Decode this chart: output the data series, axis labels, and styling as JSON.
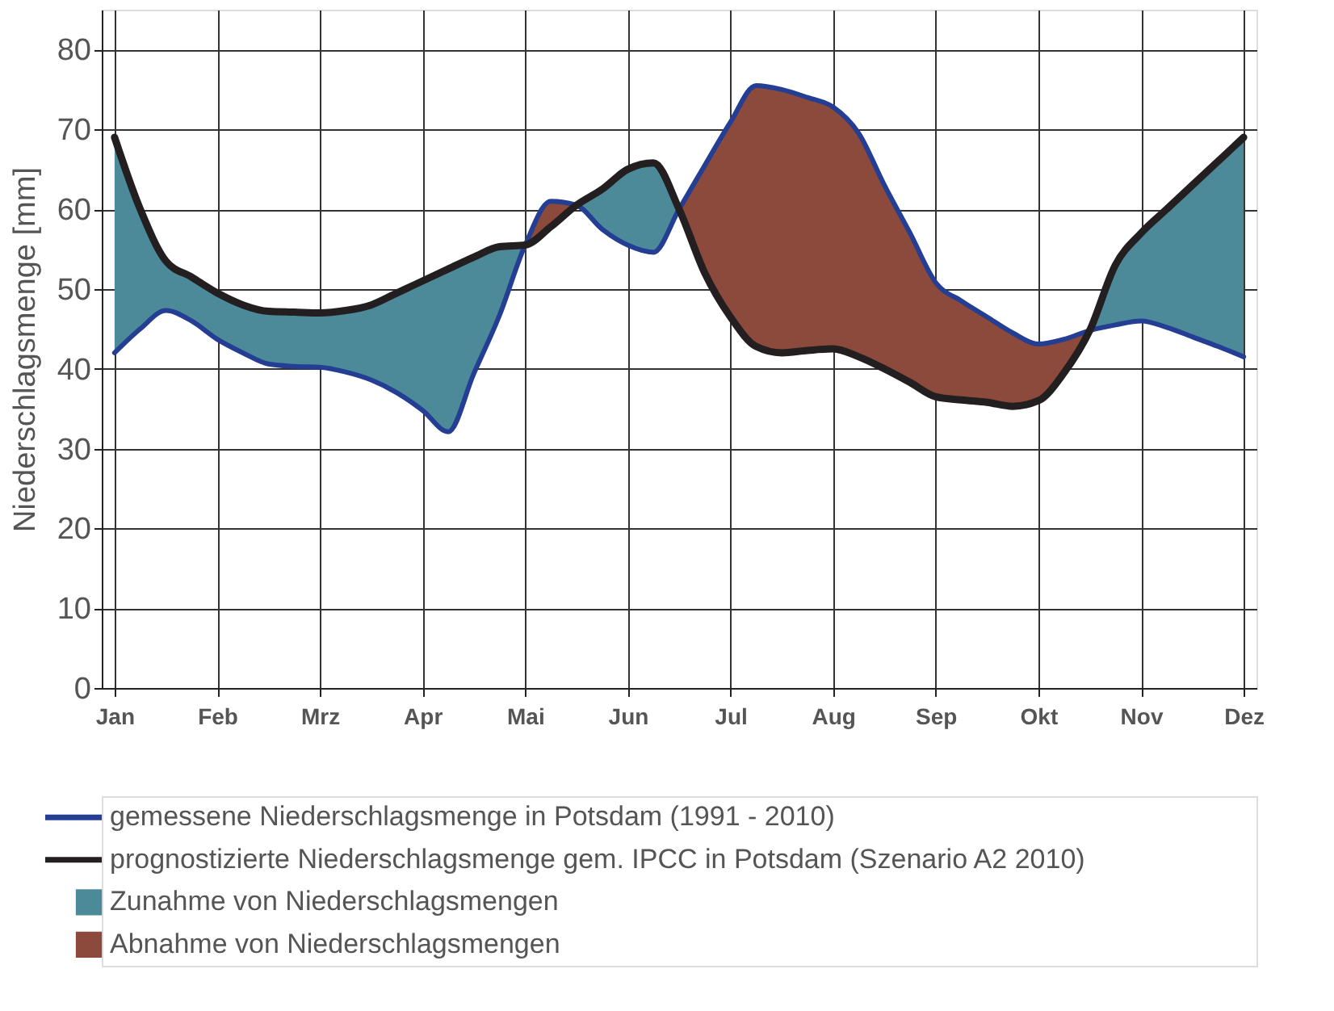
{
  "chart_data": {
    "type": "line",
    "categories": [
      "Jan",
      null,
      null,
      null,
      "Feb",
      null,
      null,
      null,
      "Mrz",
      null,
      null,
      null,
      "Apr",
      null,
      null,
      null,
      "Mai",
      null,
      null,
      null,
      "Jun",
      null,
      null,
      null,
      "Jul",
      null,
      null,
      null,
      "Aug",
      null,
      null,
      null,
      "Sep",
      null,
      null,
      null,
      "Okt",
      null,
      null,
      null,
      "Nov",
      null,
      null,
      null,
      "Dez"
    ],
    "ylim": [
      0,
      85
    ],
    "yticks": [
      0,
      10,
      20,
      30,
      40,
      50,
      60,
      70,
      80
    ],
    "ylabel": "Niederschlagsmenge [mm]",
    "grid": true,
    "legend": "bottom",
    "line_style": "solid",
    "series": [
      {
        "name": "gemessene Niederschlagsmenge in Potsdam (1991 - 2010)",
        "color": "#233e93",
        "values": [
          42,
          45,
          47.3,
          46,
          43.7,
          42,
          40.6,
          40.3,
          40.2,
          39.6,
          38.6,
          37,
          34.8,
          32.1,
          39.4,
          46.7,
          55.5,
          61,
          60.5,
          57.5,
          55.5,
          54.6,
          60,
          65.5,
          70.9,
          75.5,
          75,
          74,
          72.8,
          69.5,
          63,
          57,
          50.8,
          48.5,
          46.5,
          44.5,
          43.1,
          43.7,
          44.8,
          45.5,
          46,
          45.2,
          44,
          42.8,
          41.5
        ]
      },
      {
        "name": "prognostizierte Niederschlagsmenge gem. IPCC in Potsdam (Szenario A2 2010)",
        "color": "#231f20",
        "values": [
          69,
          60,
          53.5,
          51.5,
          49.5,
          48,
          47.2,
          47.1,
          47,
          47.3,
          48,
          49.5,
          51,
          52.5,
          54,
          55.3,
          55.5,
          57.8,
          60.5,
          62.5,
          65,
          65.8,
          60,
          52,
          46.5,
          42.8,
          42,
          42.3,
          42.5,
          41.5,
          40,
          38.3,
          36.5,
          36.1,
          35.8,
          35.3,
          36,
          39.5,
          44.8,
          53,
          57,
          60,
          63,
          66,
          69
        ]
      },
      {
        "name": "Zunahme von Niederschlagsmengen",
        "type": "area",
        "color": "#4d8a99",
        "values": [
          69,
          60,
          53.5,
          51.5,
          49.5,
          48,
          47.2,
          47.1,
          47,
          47.3,
          48,
          49.5,
          51,
          52.5,
          54,
          55.3,
          55.5,
          null,
          60.5,
          62.5,
          65,
          65.8,
          60,
          null,
          null,
          null,
          null,
          null,
          null,
          null,
          null,
          null,
          null,
          null,
          null,
          null,
          null,
          null,
          44.8,
          53,
          57,
          60,
          63,
          66,
          69
        ]
      },
      {
        "name": "Abnahme von Niederschlagsmengen",
        "type": "area",
        "color": "#8b4a3b",
        "values": [
          null,
          null,
          null,
          null,
          null,
          null,
          null,
          null,
          null,
          null,
          null,
          null,
          null,
          null,
          null,
          null,
          55.5,
          61,
          60.5,
          null,
          null,
          null,
          60,
          65.5,
          70.9,
          75.5,
          75,
          74,
          72.8,
          69.5,
          63,
          57,
          50.8,
          48.5,
          46.5,
          44.5,
          43.1,
          43.7,
          44.8,
          null,
          null,
          null,
          null,
          null,
          null
        ]
      }
    ]
  }
}
